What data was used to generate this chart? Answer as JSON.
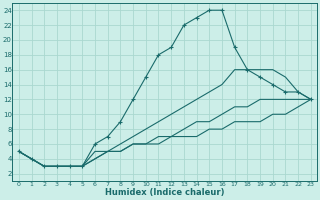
{
  "xlabel": "Humidex (Indice chaleur)",
  "bg_color": "#cceee8",
  "grid_color": "#aad8d0",
  "line_color": "#1a6b6b",
  "xlim": [
    -0.5,
    23.5
  ],
  "ylim": [
    1,
    25
  ],
  "xticks": [
    0,
    1,
    2,
    3,
    4,
    5,
    6,
    7,
    8,
    9,
    10,
    11,
    12,
    13,
    14,
    15,
    16,
    17,
    18,
    19,
    20,
    21,
    22,
    23
  ],
  "yticks": [
    2,
    4,
    6,
    8,
    10,
    12,
    14,
    16,
    18,
    20,
    22,
    24
  ],
  "series": [
    {
      "x": [
        0,
        1,
        2,
        3,
        4,
        5,
        6,
        7,
        8,
        9,
        10,
        11,
        12,
        13,
        14,
        15,
        16,
        17,
        18,
        19,
        20,
        21,
        22,
        23
      ],
      "y": [
        5,
        4,
        3,
        3,
        3,
        3,
        6,
        7,
        9,
        12,
        15,
        18,
        19,
        22,
        23,
        24,
        24,
        19,
        16,
        15,
        14,
        13,
        13,
        12
      ],
      "marker": true
    },
    {
      "x": [
        0,
        1,
        2,
        3,
        4,
        5,
        6,
        7,
        8,
        9,
        10,
        11,
        12,
        13,
        14,
        15,
        16,
        17,
        18,
        19,
        20,
        21,
        22,
        23
      ],
      "y": [
        5,
        4,
        3,
        3,
        3,
        3,
        5,
        5,
        6,
        7,
        8,
        9,
        10,
        11,
        12,
        13,
        14,
        16,
        16,
        16,
        16,
        15,
        13,
        12
      ],
      "marker": false
    },
    {
      "x": [
        0,
        1,
        2,
        3,
        4,
        5,
        6,
        7,
        8,
        9,
        10,
        11,
        12,
        13,
        14,
        15,
        16,
        17,
        18,
        19,
        20,
        21,
        22,
        23
      ],
      "y": [
        5,
        4,
        3,
        3,
        3,
        3,
        4,
        5,
        5,
        6,
        6,
        7,
        7,
        8,
        9,
        9,
        10,
        11,
        11,
        12,
        12,
        12,
        12,
        12
      ],
      "marker": false
    },
    {
      "x": [
        0,
        1,
        2,
        3,
        4,
        5,
        6,
        7,
        8,
        9,
        10,
        11,
        12,
        13,
        14,
        15,
        16,
        17,
        18,
        19,
        20,
        21,
        22,
        23
      ],
      "y": [
        5,
        4,
        3,
        3,
        3,
        3,
        4,
        5,
        5,
        6,
        6,
        6,
        7,
        7,
        7,
        8,
        8,
        9,
        9,
        9,
        10,
        10,
        11,
        12
      ],
      "marker": false
    }
  ]
}
